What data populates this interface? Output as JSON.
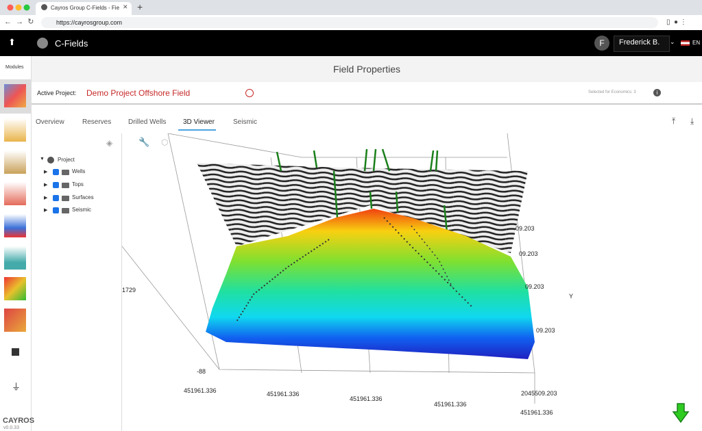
{
  "browser": {
    "tab_title": "Cayros Group C-Fields - Field",
    "url": "https://cayrosgroup.com"
  },
  "header": {
    "app_name": "C-Fields",
    "user_initial": "F",
    "user_name": "Frederick B.",
    "language": "EN"
  },
  "sidebar": {
    "modules_label": "Modules",
    "brand": "CAYROS",
    "version": "v0.0.33"
  },
  "page": {
    "title": "Field Properties",
    "active_project_label": "Active Project:",
    "active_project": "Demo Project Offshore Field",
    "selected_for_economics": "Selected for Economics: 3"
  },
  "tabs": [
    "Overview",
    "Reserves",
    "Drilled Wells",
    "3D Viewer",
    "Seismic"
  ],
  "tree": {
    "root": "Project",
    "items": [
      "Wells",
      "Tops",
      "Surfaces",
      "Seismic"
    ]
  },
  "viewer": {
    "axis_labels": [
      "1729",
      "-88",
      "451961.336",
      "451961.336",
      "451961.336",
      "451961.336",
      "451961.336",
      "2045509.203",
      "09.203",
      "09.203",
      "09.203",
      "09.203",
      "Y"
    ]
  }
}
